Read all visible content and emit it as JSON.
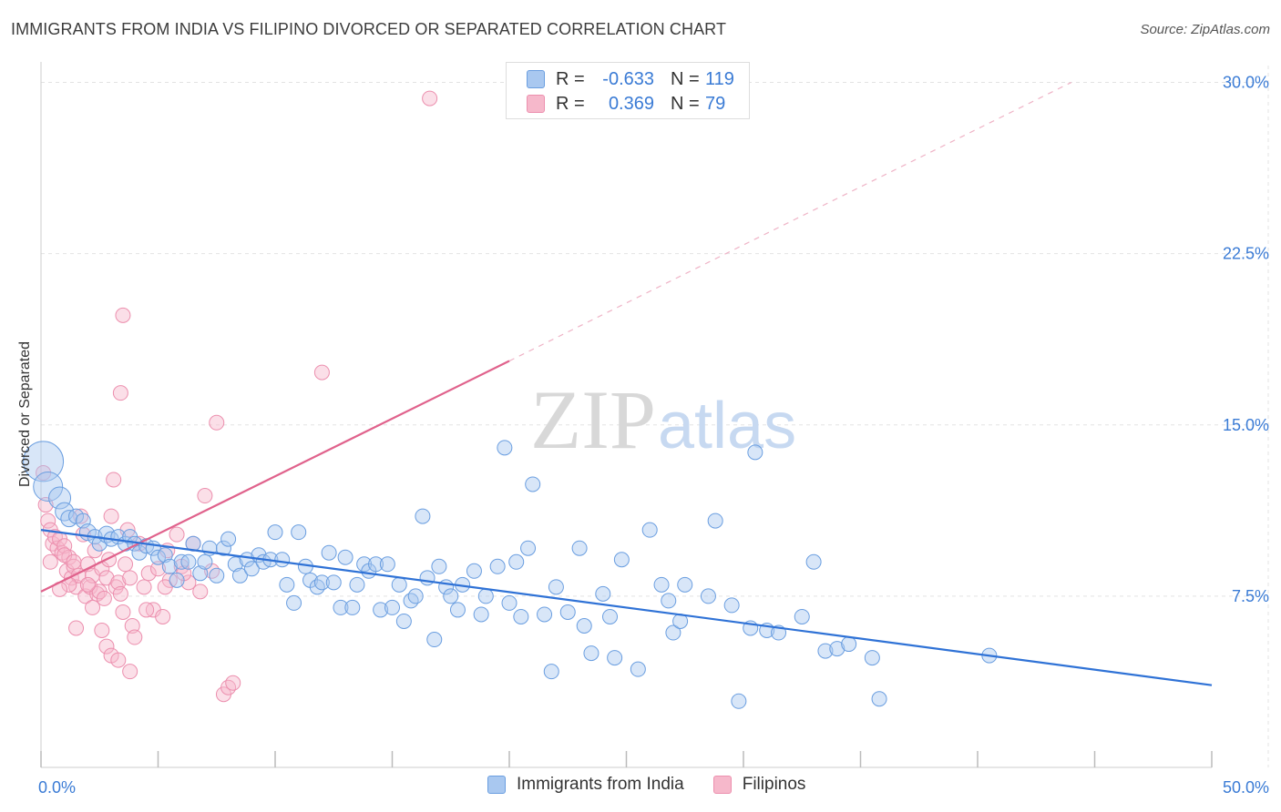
{
  "title": "IMMIGRANTS FROM INDIA VS FILIPINO DIVORCED OR SEPARATED CORRELATION CHART",
  "source": "Source: ZipAtlas.com",
  "watermark": {
    "zip": "ZIP",
    "atlas": "atlas"
  },
  "colors": {
    "india_fill": "#a9c8f0",
    "india_stroke": "#6a9ee0",
    "india_line": "#2f72d6",
    "filipino_fill": "#f6b8cb",
    "filipino_stroke": "#ec8fae",
    "filipino_line": "#e0628c",
    "axis_text": "#3a7bd5",
    "grid": "#e3e3e3"
  },
  "legend_top": [
    {
      "r_label": "R =",
      "r_value": "-0.633",
      "n_label": "N =",
      "n_value": "119"
    },
    {
      "r_label": "R =",
      "r_value": "0.369",
      "n_label": "N =",
      "n_value": "79"
    }
  ],
  "legend_bottom": [
    "Immigrants from India",
    "Filipinos"
  ],
  "chart_data": {
    "type": "scatter",
    "title": "IMMIGRANTS FROM INDIA VS FILIPINO DIVORCED OR SEPARATED CORRELATION CHART",
    "xlabel": "",
    "ylabel": "Divorced or Separated",
    "xlim": [
      0,
      50
    ],
    "ylim": [
      0,
      30.5
    ],
    "x_tick_labels": [
      "0.0%",
      "50.0%"
    ],
    "y_ticks": [
      7.5,
      15.0,
      22.5,
      30.0
    ],
    "y_tick_labels": [
      "7.5%",
      "15.0%",
      "22.5%",
      "30.0%"
    ],
    "grid": true,
    "legend_placement": "top-center",
    "series": [
      {
        "name": "Immigrants from India",
        "R": -0.633,
        "N": 119,
        "trend": {
          "x": [
            0,
            50
          ],
          "y": [
            10.4,
            3.6
          ]
        },
        "points": [
          [
            0.1,
            13.4,
            22
          ],
          [
            0.3,
            12.3,
            16
          ],
          [
            0.8,
            11.8,
            12
          ],
          [
            1.0,
            11.2,
            10
          ],
          [
            1.2,
            10.9,
            9
          ],
          [
            1.5,
            11.0,
            8
          ],
          [
            1.8,
            10.8,
            8
          ],
          [
            2.0,
            10.3,
            9
          ],
          [
            2.3,
            10.1,
            8
          ],
          [
            2.5,
            9.8,
            8
          ],
          [
            2.8,
            10.2,
            9
          ],
          [
            3.0,
            10.0,
            8
          ],
          [
            3.3,
            10.1,
            8
          ],
          [
            3.6,
            9.8,
            8
          ],
          [
            3.8,
            10.1,
            8
          ],
          [
            4.0,
            9.8,
            8
          ],
          [
            4.2,
            9.4,
            8
          ],
          [
            4.5,
            9.7,
            8
          ],
          [
            4.8,
            9.6,
            8
          ],
          [
            5.0,
            9.2,
            8
          ],
          [
            5.3,
            9.3,
            8
          ],
          [
            5.5,
            8.8,
            8
          ],
          [
            5.8,
            8.2,
            8
          ],
          [
            6.0,
            9.0,
            8
          ],
          [
            6.3,
            9.0,
            8
          ],
          [
            6.5,
            9.8,
            8
          ],
          [
            6.8,
            8.5,
            8
          ],
          [
            7.0,
            9.0,
            8
          ],
          [
            7.2,
            9.6,
            8
          ],
          [
            7.5,
            8.4,
            8
          ],
          [
            7.8,
            9.6,
            8
          ],
          [
            8.0,
            10.0,
            8
          ],
          [
            8.3,
            8.9,
            8
          ],
          [
            8.5,
            8.4,
            8
          ],
          [
            8.8,
            9.1,
            8
          ],
          [
            9.0,
            8.7,
            8
          ],
          [
            9.3,
            9.3,
            8
          ],
          [
            9.5,
            9.0,
            8
          ],
          [
            9.8,
            9.1,
            8
          ],
          [
            10.0,
            10.3,
            8
          ],
          [
            10.3,
            9.1,
            8
          ],
          [
            10.5,
            8.0,
            8
          ],
          [
            10.8,
            7.2,
            8
          ],
          [
            11.0,
            10.3,
            8
          ],
          [
            11.3,
            8.8,
            8
          ],
          [
            11.5,
            8.2,
            8
          ],
          [
            11.8,
            7.9,
            8
          ],
          [
            12.0,
            8.1,
            8
          ],
          [
            12.3,
            9.4,
            8
          ],
          [
            12.5,
            8.1,
            8
          ],
          [
            12.8,
            7.0,
            8
          ],
          [
            13.0,
            9.2,
            8
          ],
          [
            13.3,
            7.0,
            8
          ],
          [
            13.5,
            8.0,
            8
          ],
          [
            13.8,
            8.9,
            8
          ],
          [
            14.0,
            8.6,
            8
          ],
          [
            14.3,
            8.9,
            8
          ],
          [
            14.5,
            6.9,
            8
          ],
          [
            14.8,
            8.9,
            8
          ],
          [
            15.0,
            7.0,
            8
          ],
          [
            15.3,
            8.0,
            8
          ],
          [
            15.5,
            6.4,
            8
          ],
          [
            15.8,
            7.3,
            8
          ],
          [
            16.0,
            7.5,
            8
          ],
          [
            16.3,
            11.0,
            8
          ],
          [
            16.5,
            8.3,
            8
          ],
          [
            16.8,
            5.6,
            8
          ],
          [
            17.0,
            8.8,
            8
          ],
          [
            17.3,
            7.9,
            8
          ],
          [
            17.5,
            7.5,
            8
          ],
          [
            17.8,
            6.9,
            8
          ],
          [
            18.0,
            8.0,
            8
          ],
          [
            18.5,
            8.6,
            8
          ],
          [
            18.8,
            6.7,
            8
          ],
          [
            19.0,
            7.5,
            8
          ],
          [
            19.5,
            8.8,
            8
          ],
          [
            19.8,
            14.0,
            8
          ],
          [
            20.0,
            7.2,
            8
          ],
          [
            20.3,
            9.0,
            8
          ],
          [
            20.5,
            6.6,
            8
          ],
          [
            20.8,
            9.6,
            8
          ],
          [
            21.0,
            12.4,
            8
          ],
          [
            21.5,
            6.7,
            8
          ],
          [
            21.8,
            4.2,
            8
          ],
          [
            22.0,
            7.9,
            8
          ],
          [
            22.5,
            6.8,
            8
          ],
          [
            23.0,
            9.6,
            8
          ],
          [
            23.2,
            6.2,
            8
          ],
          [
            23.5,
            5.0,
            8
          ],
          [
            24.0,
            7.6,
            8
          ],
          [
            24.3,
            6.6,
            8
          ],
          [
            24.5,
            4.8,
            8
          ],
          [
            24.8,
            9.1,
            8
          ],
          [
            25.5,
            4.3,
            8
          ],
          [
            26.0,
            10.4,
            8
          ],
          [
            26.5,
            8.0,
            8
          ],
          [
            26.8,
            7.3,
            8
          ],
          [
            27.0,
            5.9,
            8
          ],
          [
            27.3,
            6.4,
            8
          ],
          [
            27.5,
            8.0,
            8
          ],
          [
            28.5,
            7.5,
            8
          ],
          [
            28.8,
            10.8,
            8
          ],
          [
            29.5,
            7.1,
            8
          ],
          [
            30.3,
            6.1,
            8
          ],
          [
            29.8,
            2.9,
            8
          ],
          [
            30.5,
            13.8,
            8
          ],
          [
            31.0,
            6.0,
            8
          ],
          [
            31.5,
            5.9,
            8
          ],
          [
            32.5,
            6.6,
            8
          ],
          [
            33.0,
            9.0,
            8
          ],
          [
            33.5,
            5.1,
            8
          ],
          [
            34.0,
            5.2,
            8
          ],
          [
            34.5,
            5.4,
            8
          ],
          [
            35.5,
            4.8,
            8
          ],
          [
            35.8,
            3.0,
            8
          ],
          [
            40.5,
            4.9,
            8
          ]
        ]
      },
      {
        "name": "Filipinos",
        "R": 0.369,
        "N": 79,
        "trend_solid": {
          "x": [
            0,
            20
          ],
          "y": [
            7.7,
            17.8
          ]
        },
        "trend_dashed": {
          "x": [
            20,
            44
          ],
          "y": [
            17.8,
            30.0
          ]
        },
        "points": [
          [
            0.1,
            12.9
          ],
          [
            0.2,
            11.5
          ],
          [
            0.3,
            10.8
          ],
          [
            0.4,
            10.4
          ],
          [
            0.5,
            9.8
          ],
          [
            0.6,
            10.1
          ],
          [
            0.7,
            9.6
          ],
          [
            0.8,
            10.0
          ],
          [
            0.9,
            9.4
          ],
          [
            1.0,
            9.7
          ],
          [
            1.1,
            8.6
          ],
          [
            1.2,
            9.2
          ],
          [
            1.3,
            8.3
          ],
          [
            1.4,
            8.8
          ],
          [
            1.5,
            7.9
          ],
          [
            1.6,
            8.4
          ],
          [
            1.7,
            11.0
          ],
          [
            1.8,
            10.2
          ],
          [
            1.9,
            7.5
          ],
          [
            2.0,
            8.9
          ],
          [
            2.1,
            7.9
          ],
          [
            2.2,
            8.4
          ],
          [
            2.3,
            9.5
          ],
          [
            2.4,
            7.6
          ],
          [
            2.5,
            7.7
          ],
          [
            2.6,
            8.7
          ],
          [
            2.7,
            7.4
          ],
          [
            2.8,
            8.3
          ],
          [
            2.9,
            9.1
          ],
          [
            3.0,
            11.0
          ],
          [
            3.1,
            12.6
          ],
          [
            3.2,
            7.9
          ],
          [
            3.3,
            8.1
          ],
          [
            3.4,
            7.6
          ],
          [
            3.5,
            6.8
          ],
          [
            3.6,
            8.9
          ],
          [
            3.7,
            10.4
          ],
          [
            3.8,
            8.3
          ],
          [
            3.9,
            6.2
          ],
          [
            4.0,
            5.7
          ],
          [
            4.2,
            9.8
          ],
          [
            4.4,
            7.9
          ],
          [
            4.6,
            8.5
          ],
          [
            4.8,
            6.9
          ],
          [
            5.0,
            8.7
          ],
          [
            5.2,
            6.6
          ],
          [
            5.4,
            9.5
          ],
          [
            5.5,
            8.2
          ],
          [
            5.8,
            10.2
          ],
          [
            6.0,
            8.8
          ],
          [
            6.3,
            8.1
          ],
          [
            6.5,
            9.8
          ],
          [
            6.8,
            7.7
          ],
          [
            7.0,
            11.9
          ],
          [
            7.3,
            8.6
          ],
          [
            7.5,
            15.1
          ],
          [
            7.8,
            3.2
          ],
          [
            8.0,
            3.5
          ],
          [
            8.2,
            3.7
          ],
          [
            3.4,
            16.4
          ],
          [
            3.5,
            19.8
          ],
          [
            12.0,
            17.3
          ],
          [
            16.6,
            29.3
          ],
          [
            1.5,
            6.1
          ],
          [
            2.2,
            7.0
          ],
          [
            2.8,
            5.3
          ],
          [
            3.0,
            4.9
          ],
          [
            3.3,
            4.7
          ],
          [
            3.8,
            4.2
          ],
          [
            1.2,
            8.0
          ],
          [
            0.8,
            7.8
          ],
          [
            2.6,
            6.0
          ],
          [
            4.5,
            6.9
          ],
          [
            5.3,
            7.9
          ],
          [
            6.1,
            8.5
          ],
          [
            0.4,
            9.0
          ],
          [
            1.0,
            9.3
          ],
          [
            1.4,
            9.0
          ],
          [
            2.0,
            8.0
          ]
        ]
      }
    ]
  }
}
